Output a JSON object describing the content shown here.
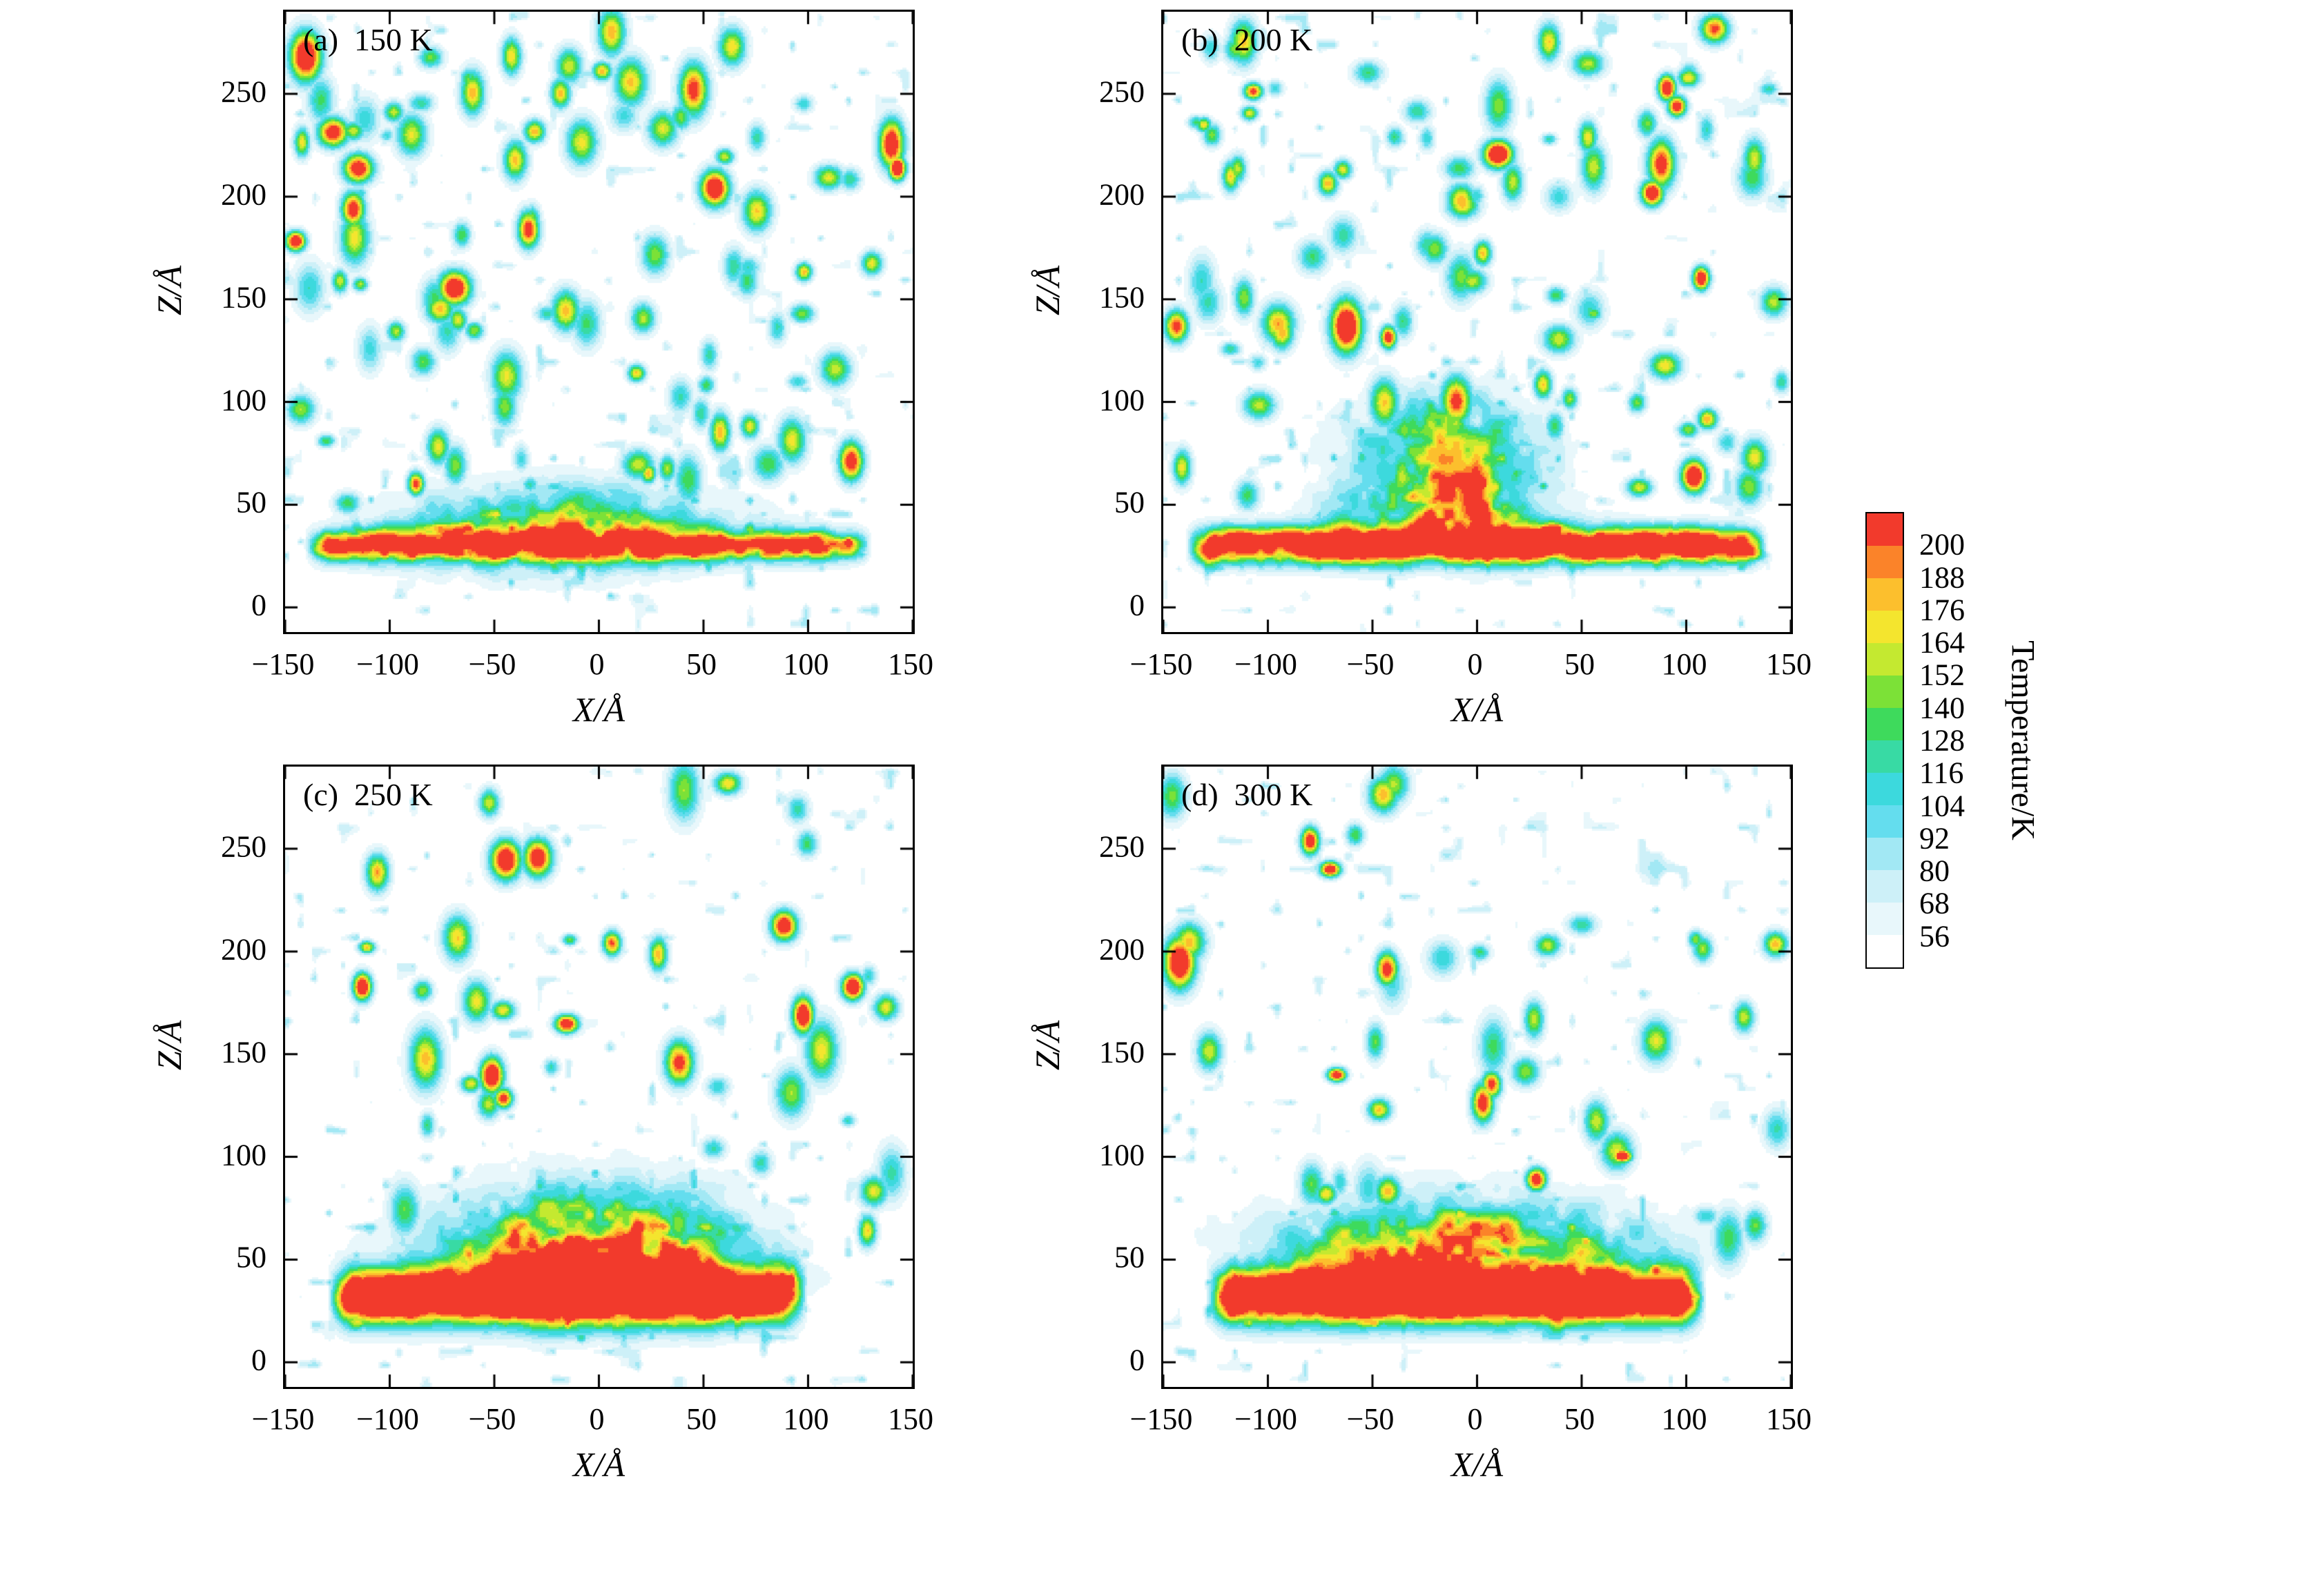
{
  "page": {
    "background": "#ffffff"
  },
  "chart_data": {
    "type": "contour",
    "title": "",
    "layout": {
      "grid": "2x2",
      "grid_lines": false,
      "colorbar_position": "right"
    },
    "axes": {
      "xlabel": "X/Å",
      "ylabel": "Z/Å",
      "xlim": [
        -150,
        150
      ],
      "zlim": [
        -12,
        290
      ],
      "xticks": [
        -150,
        -100,
        -50,
        0,
        50,
        100,
        150
      ],
      "zticks": [
        0,
        50,
        100,
        150,
        200,
        250
      ]
    },
    "colorbar": {
      "title": "Temperature/K",
      "tick_values": [
        56,
        68,
        80,
        92,
        104,
        116,
        128,
        140,
        152,
        164,
        176,
        188,
        200
      ],
      "band_colors": [
        "#ffffff",
        "#e8f7fb",
        "#cdf0f8",
        "#a2e8f4",
        "#64ddee",
        "#3cd9dd",
        "#38daa4",
        "#3eda5c",
        "#7ce137",
        "#c4e930",
        "#f4e52e",
        "#fcbf2d",
        "#fb8329",
        "#f23a2c"
      ]
    },
    "panels": [
      {
        "id": "a",
        "label": "(a)  150 K",
        "temperature_K": 150,
        "field": {
          "seed": 101,
          "ambient": 45,
          "base": {
            "z0": 30,
            "sigma": 5,
            "amp": 160,
            "halfwidth": 136,
            "xc": -5,
            "noise_bias": 0.55,
            "noise_scale": 0.95
          },
          "plumes": [
            {
              "x0": -18,
              "z0": 38,
              "sx": 50,
              "sz": 14,
              "amp": 105
            }
          ],
          "plume_noise": {
            "bias": 0.35,
            "scale": 1.35
          },
          "spots": {
            "count": 95,
            "hot": 13,
            "zmin": 50,
            "zmax": 283,
            "amp_min": 62,
            "amp_max": 145,
            "hot_min": 160,
            "hot_max": 228
          },
          "wisp": {
            "threshold": 0.78,
            "amp": 45
          }
        }
      },
      {
        "id": "b",
        "label": "(b)  200 K",
        "temperature_K": 200,
        "field": {
          "seed": 202,
          "ambient": 45,
          "base": {
            "z0": 30,
            "sigma": 6,
            "amp": 205,
            "halfwidth": 140,
            "xc": 0,
            "noise_bias": 0.6,
            "noise_scale": 0.9
          },
          "plumes": [
            {
              "x0": -14,
              "z0": 70,
              "sx": 30,
              "sz": 22,
              "amp": 108
            },
            {
              "x0": -16,
              "z0": 44,
              "sx": 32,
              "sz": 12,
              "amp": 85
            }
          ],
          "plume_noise": {
            "bias": 0.35,
            "scale": 1.35
          },
          "spots": {
            "count": 88,
            "hot": 14,
            "zmin": 50,
            "zmax": 283,
            "amp_min": 62,
            "amp_max": 145,
            "hot_min": 160,
            "hot_max": 228
          },
          "wisp": {
            "threshold": 0.78,
            "amp": 45
          }
        }
      },
      {
        "id": "c",
        "label": "(c)  250 K",
        "temperature_K": 250,
        "field": {
          "seed": 303,
          "ambient": 45,
          "base": {
            "z0": 32,
            "sigma": 9,
            "amp": 235,
            "halfwidth": 115,
            "xc": -15,
            "noise_bias": 0.78,
            "noise_scale": 0.5
          },
          "plumes": [
            {
              "x0": -5,
              "z0": 56,
              "sx": 46,
              "sz": 20,
              "amp": 142
            },
            {
              "x0": 0,
              "z0": 42,
              "sx": 48,
              "sz": 10,
              "amp": 65
            }
          ],
          "plume_noise": {
            "bias": 0.35,
            "scale": 1.35
          },
          "spots": {
            "count": 45,
            "hot": 11,
            "zmin": 60,
            "zmax": 283,
            "amp_min": 62,
            "amp_max": 145,
            "hot_min": 160,
            "hot_max": 228
          },
          "wisp": {
            "threshold": 0.8,
            "amp": 45
          }
        }
      },
      {
        "id": "d",
        "label": "(d)  300 K",
        "temperature_K": 300,
        "field": {
          "seed": 404,
          "ambient": 45,
          "base": {
            "z0": 32,
            "sigma": 9,
            "amp": 235,
            "halfwidth": 120,
            "xc": -10,
            "noise_bias": 0.78,
            "noise_scale": 0.5
          },
          "plumes": [
            {
              "x0": -8,
              "z0": 55,
              "sx": 55,
              "sz": 16,
              "amp": 142
            }
          ],
          "plume_noise": {
            "bias": 0.35,
            "scale": 1.35
          },
          "spots": {
            "count": 42,
            "hot": 9,
            "zmin": 60,
            "zmax": 283,
            "amp_min": 62,
            "amp_max": 145,
            "hot_min": 160,
            "hot_max": 228
          },
          "wisp": {
            "threshold": 0.8,
            "amp": 45
          }
        }
      }
    ]
  }
}
